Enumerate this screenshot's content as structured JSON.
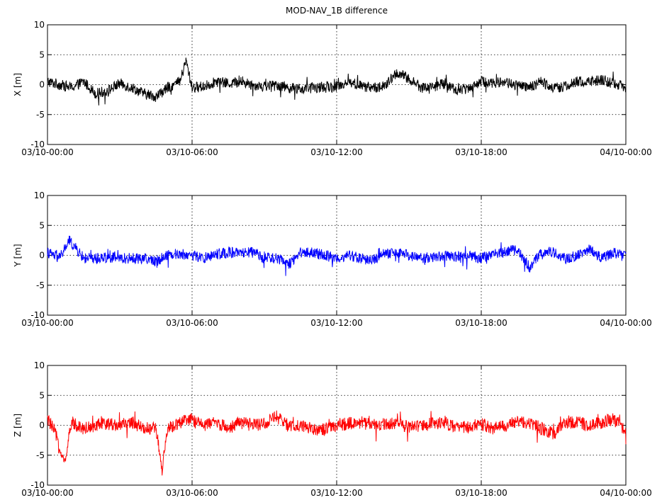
{
  "chart_data": [
    {
      "type": "line",
      "title": "MOD-NAV_1B difference",
      "xlabel": "",
      "ylabel": "X [m]",
      "ylim": [
        -10,
        10
      ],
      "yticks": [
        -10,
        -5,
        0,
        5,
        10
      ],
      "xticks": [
        "03/10-00:00",
        "03/10-06:00",
        "03/10-12:00",
        "03/10-18:00",
        "04/10-00:00"
      ],
      "xlim_hours": [
        0,
        24
      ],
      "grid": true,
      "series": [
        {
          "color": "#000000",
          "x_hours": [
            0,
            0.5,
            1,
            1.5,
            2,
            2.5,
            3,
            3.5,
            4,
            4.5,
            5,
            5.5,
            5.75,
            6,
            6.5,
            7,
            7.5,
            8,
            8.5,
            9,
            9.5,
            10,
            10.5,
            11,
            11.5,
            12,
            12.5,
            13,
            13.5,
            14,
            14.5,
            15,
            15.5,
            16,
            16.5,
            17,
            17.5,
            18,
            18.5,
            19,
            19.5,
            20,
            20.5,
            21,
            21.5,
            22,
            22.5,
            23,
            23.5,
            24
          ],
          "values": [
            0.5,
            0,
            -0.5,
            0.5,
            -1.5,
            -1,
            0.2,
            -0.5,
            -1.5,
            -2,
            -0.5,
            0.5,
            4,
            -0.5,
            -0.3,
            0.5,
            0.2,
            0.5,
            0,
            -0.3,
            0,
            -0.5,
            -0.8,
            -0.5,
            -0.5,
            -0.3,
            0.5,
            -0.2,
            -0.5,
            -0.3,
            2,
            1,
            -0.5,
            -0.3,
            0.2,
            -1,
            -0.5,
            0.5,
            0.3,
            0.5,
            -0.2,
            -0.5,
            0.5,
            -0.5,
            -0.3,
            0.5,
            0.5,
            0.8,
            0.2,
            -0.5
          ],
          "noise": 1.0
        }
      ]
    },
    {
      "type": "line",
      "title": "",
      "xlabel": "",
      "ylabel": "Y [m]",
      "ylim": [
        -10,
        10
      ],
      "yticks": [
        -10,
        -5,
        0,
        5,
        10
      ],
      "xticks": [
        "03/10-00:00",
        "03/10-06:00",
        "03/10-12:00",
        "03/10-18:00",
        "04/10-00:00"
      ],
      "xlim_hours": [
        0,
        24
      ],
      "grid": true,
      "series": [
        {
          "color": "#0000ff",
          "x_hours": [
            0,
            0.5,
            0.9,
            1.5,
            2,
            2.5,
            3,
            3.5,
            4,
            4.5,
            5,
            5.5,
            6,
            6.5,
            7,
            7.5,
            8,
            8.5,
            9,
            9.5,
            10,
            10.5,
            11,
            11.5,
            12,
            12.5,
            13,
            13.5,
            14,
            14.5,
            15,
            15.5,
            16,
            16.5,
            17,
            17.5,
            18,
            18.5,
            19,
            19.5,
            20,
            20.5,
            21,
            21.5,
            22,
            22.5,
            23,
            23.5,
            24
          ],
          "values": [
            0.5,
            -0.5,
            2.5,
            -0.5,
            -0.5,
            -0.3,
            -0.5,
            -0.5,
            -0.5,
            -1,
            0.2,
            0.2,
            0,
            -0.5,
            0.2,
            0.5,
            0.3,
            0.5,
            -0.5,
            -0.5,
            -1.5,
            0.5,
            0.5,
            0,
            -0.5,
            0,
            -0.5,
            -0.8,
            0.3,
            0.3,
            0,
            -0.5,
            -0.3,
            0,
            -0.3,
            0,
            -0.5,
            0.3,
            0.5,
            1,
            -2,
            0.5,
            0.5,
            -0.5,
            0,
            1,
            -0.5,
            0.5,
            -0.3
          ],
          "noise": 1.0
        }
      ]
    },
    {
      "type": "line",
      "title": "",
      "xlabel": "",
      "ylabel": "Z [m]",
      "ylim": [
        -10,
        10
      ],
      "yticks": [
        -10,
        -5,
        0,
        5,
        10
      ],
      "xticks": [
        "03/10-00:00",
        "03/10-06:00",
        "03/10-12:00",
        "03/10-18:00",
        "04/10-00:00"
      ],
      "xlim_hours": [
        0,
        24
      ],
      "grid": true,
      "series": [
        {
          "color": "#ff0000",
          "x_hours": [
            0,
            0.3,
            0.7,
            1,
            1.5,
            2,
            2.5,
            3,
            3.5,
            4,
            4.5,
            4.75,
            5,
            5.5,
            6,
            6.5,
            7,
            7.5,
            8,
            8.5,
            9,
            9.5,
            10,
            10.5,
            11,
            11.5,
            12,
            12.5,
            13,
            13.5,
            14,
            14.5,
            15,
            15.5,
            16,
            16.5,
            17,
            17.5,
            18,
            18.5,
            19,
            19.5,
            20,
            20.5,
            21,
            21.5,
            22,
            22.5,
            23,
            23.5,
            24
          ],
          "values": [
            1,
            -1,
            -6.5,
            0.5,
            -0.5,
            0,
            0.3,
            0,
            0.5,
            -0.5,
            -0.5,
            -7.5,
            -0.5,
            0.5,
            1,
            0,
            0.5,
            -0.5,
            0.5,
            0,
            0.3,
            1.5,
            -0.3,
            0,
            -0.5,
            -0.8,
            0,
            0.3,
            0.5,
            0,
            0.3,
            0.5,
            -0.3,
            0,
            0.3,
            0.5,
            -0.5,
            -0.3,
            0.2,
            -0.5,
            0,
            0.5,
            0.5,
            -0.5,
            -1.5,
            0.5,
            0.5,
            0,
            0.5,
            1,
            -1
          ],
          "noise": 1.2
        }
      ]
    }
  ]
}
